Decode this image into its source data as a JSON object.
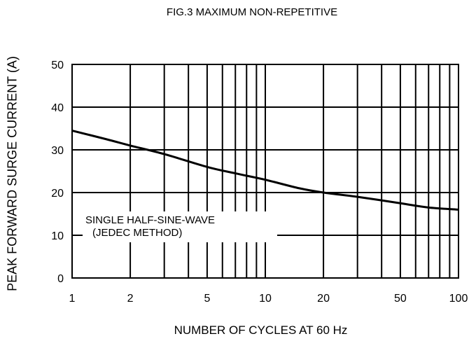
{
  "chart_data": {
    "type": "line",
    "title": "FIG.3  MAXIMUM NON-REPETITIVE",
    "xlabel": "NUMBER OF CYCLES AT 60 Hz",
    "ylabel": "PEAK FORWARD SURGE CURRENT (A)",
    "x_scale": "log",
    "xlim": [
      1,
      100
    ],
    "ylim": [
      0,
      50
    ],
    "x_ticks": [
      1,
      2,
      5,
      10,
      20,
      50,
      100
    ],
    "y_ticks": [
      0,
      10,
      20,
      30,
      40,
      50
    ],
    "grid": true,
    "annotation": [
      "SINGLE HALF-SINE-WAVE",
      "(JEDEC METHOD)"
    ],
    "series": [
      {
        "x": [
          1,
          1.5,
          2,
          3,
          5,
          7,
          10,
          15,
          20,
          30,
          50,
          70,
          100
        ],
        "values": [
          34.5,
          32.5,
          31,
          29,
          26,
          24.5,
          23,
          21,
          20,
          19,
          17.5,
          16.5,
          16
        ]
      }
    ]
  }
}
